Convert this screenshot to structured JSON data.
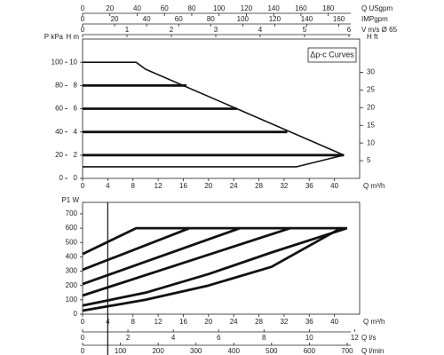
{
  "chart_data": [
    {
      "type": "line",
      "annotation": "Δp-c Curves",
      "xlabel": "Q m³/h",
      "xlim": [
        0,
        44
      ],
      "xticks": [
        0,
        4,
        8,
        12,
        16,
        20,
        24,
        28,
        32,
        36,
        40
      ],
      "ylabel": "H m",
      "ylim": [
        0,
        12
      ],
      "yticks": [
        0,
        2,
        4,
        6,
        8,
        10
      ],
      "extra_axes": [
        {
          "side": "left",
          "label": "P kPa",
          "lim": [
            0,
            120
          ],
          "ticks": [
            0,
            20,
            40,
            60,
            80,
            100
          ]
        },
        {
          "side": "right",
          "label": "H ft",
          "lim": [
            0,
            39.4
          ],
          "ticks": [
            5,
            10,
            15,
            20,
            25,
            30
          ]
        },
        {
          "side": "top",
          "label": "Q USgpm",
          "lim": [
            0,
            203
          ],
          "ticks": [
            0,
            20,
            40,
            60,
            80,
            100,
            120,
            140,
            160,
            180
          ]
        },
        {
          "side": "top",
          "label": "IMPgpm",
          "lim": [
            0,
            173
          ],
          "ticks": [
            0,
            20,
            40,
            60,
            80,
            100,
            120,
            140,
            160
          ]
        },
        {
          "side": "top",
          "label": "V m/s Ø 65",
          "lim": [
            0,
            6.24
          ],
          "ticks": [
            0,
            1,
            2,
            3,
            4,
            5,
            6
          ]
        }
      ],
      "series": [
        {
          "color": "#111111",
          "weight": "normal",
          "x": [
            0,
            8.5,
            10,
            24.5,
            41.5
          ],
          "y": [
            10,
            10,
            9.4,
            6,
            2
          ]
        },
        {
          "color": "#111111",
          "weight": "bold",
          "x": [
            0,
            16.5
          ],
          "y": [
            8,
            8
          ]
        },
        {
          "color": "#111111",
          "weight": "bold",
          "x": [
            0,
            24.5
          ],
          "y": [
            6,
            6
          ]
        },
        {
          "color": "#111111",
          "weight": "bold",
          "x": [
            0,
            32.5
          ],
          "y": [
            4,
            4
          ]
        },
        {
          "color": "#111111",
          "weight": "bold",
          "x": [
            0,
            41.5
          ],
          "y": [
            2,
            2
          ]
        },
        {
          "color": "#111111",
          "weight": "normal",
          "x": [
            0,
            34,
            41.5
          ],
          "y": [
            1,
            1,
            2
          ]
        }
      ]
    },
    {
      "type": "line",
      "xlabel": "Q m³/h",
      "xlim": [
        0,
        44
      ],
      "xticks": [
        0,
        4,
        8,
        12,
        16,
        20,
        24,
        28,
        32,
        36,
        40
      ],
      "ylabel": "P1 W",
      "ylim": [
        0,
        780
      ],
      "yticks": [
        0,
        100,
        200,
        300,
        400,
        500,
        600,
        700
      ],
      "vline": 4,
      "extra_axes": [
        {
          "side": "bottom",
          "label": "Q l/s",
          "lim": [
            0,
            12.22
          ],
          "ticks": [
            0,
            2,
            4,
            6,
            8,
            10,
            12
          ]
        },
        {
          "side": "bottom",
          "label": "Q l/min",
          "lim": [
            0,
            733
          ],
          "ticks": [
            0,
            100,
            200,
            300,
            400,
            500,
            600,
            700
          ]
        }
      ],
      "series": [
        {
          "color": "#111111",
          "weight": "bold",
          "x": [
            0,
            8.5,
            42
          ],
          "y": [
            420,
            600,
            600
          ]
        },
        {
          "color": "#111111",
          "weight": "bold",
          "x": [
            0,
            17
          ],
          "y": [
            310,
            600
          ]
        },
        {
          "color": "#111111",
          "weight": "bold",
          "x": [
            0,
            25
          ],
          "y": [
            210,
            600
          ]
        },
        {
          "color": "#111111",
          "weight": "bold",
          "x": [
            0,
            33
          ],
          "y": [
            130,
            600
          ]
        },
        {
          "color": "#111111",
          "weight": "bold",
          "x": [
            0,
            10,
            20,
            30,
            42
          ],
          "y": [
            60,
            150,
            280,
            430,
            600
          ]
        },
        {
          "color": "#111111",
          "weight": "bold",
          "x": [
            0,
            10,
            20,
            30,
            41
          ],
          "y": [
            25,
            100,
            200,
            330,
            600
          ]
        }
      ]
    }
  ]
}
